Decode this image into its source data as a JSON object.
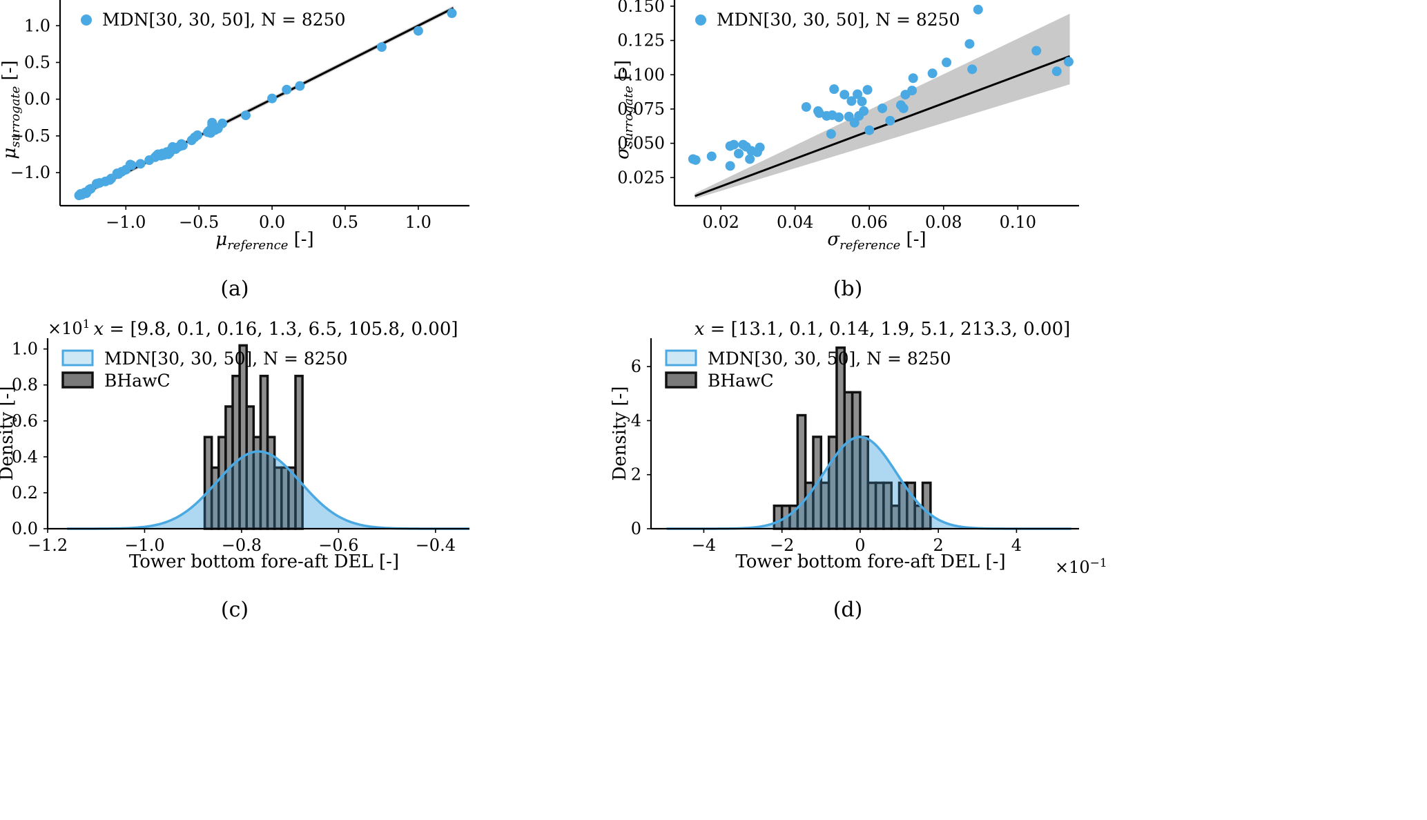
{
  "colors": {
    "mdn": "#4aa9e2",
    "mdn_fill": "#cfe8f6",
    "hist": "#7a7a7a",
    "hist_edge": "#111111",
    "overlap": "#4f6b80",
    "band": "#c9c9c9",
    "line": "#000000",
    "axis": "#000000"
  },
  "chart_data": [
    {
      "id": "a",
      "type": "scatter",
      "caption": "(a)",
      "xlabel_sym": "μ",
      "xlabel_sub": "reference",
      "xlabel_unit": "[-]",
      "ylabel_sym": "μ",
      "ylabel_sub": "surrogate",
      "ylabel_unit": "[-]",
      "xlim": [
        -1.45,
        1.35
      ],
      "ylim": [
        -1.45,
        1.35
      ],
      "xticks": [
        -1.0,
        -0.5,
        0.0,
        0.5,
        1.0
      ],
      "xtick_labels": [
        "−1.0",
        "−0.5",
        "0.0",
        "0.5",
        "1.0"
      ],
      "yticks": [
        -1.0,
        -0.5,
        0.0,
        0.5,
        1.0
      ],
      "ytick_labels": [
        "−1.0",
        "−0.5",
        "0.0",
        "0.5",
        "1.0"
      ],
      "legend": "MDN[30, 30, 50], N = 8250",
      "legend_loc": "top-left",
      "band_halfwidth": 0.03,
      "line": [
        [
          -1.32,
          -1.32
        ],
        [
          1.24,
          1.24
        ]
      ],
      "points": [
        [
          -1.32,
          -1.31
        ],
        [
          -1.31,
          -1.29
        ],
        [
          -1.3,
          -1.3
        ],
        [
          -1.28,
          -1.27
        ],
        [
          -1.27,
          -1.28
        ],
        [
          -1.25,
          -1.23
        ],
        [
          -1.24,
          -1.22
        ],
        [
          -1.2,
          -1.15
        ],
        [
          -1.18,
          -1.14
        ],
        [
          -1.14,
          -1.12
        ],
        [
          -1.11,
          -1.1
        ],
        [
          -1.1,
          -1.08
        ],
        [
          -1.06,
          -1.01
        ],
        [
          -1.05,
          -1.02
        ],
        [
          -1.03,
          -0.99
        ],
        [
          -1.0,
          -0.96
        ],
        [
          -0.97,
          -0.89
        ],
        [
          -0.96,
          -0.9
        ],
        [
          -0.9,
          -0.88
        ],
        [
          -0.84,
          -0.83
        ],
        [
          -0.8,
          -0.79
        ],
        [
          -0.79,
          -0.77
        ],
        [
          -0.78,
          -0.75
        ],
        [
          -0.76,
          -0.77
        ],
        [
          -0.75,
          -0.74
        ],
        [
          -0.74,
          -0.76
        ],
        [
          -0.72,
          -0.72
        ],
        [
          -0.71,
          -0.75
        ],
        [
          -0.7,
          -0.73
        ],
        [
          -0.69,
          -0.69
        ],
        [
          -0.68,
          -0.65
        ],
        [
          -0.66,
          -0.68
        ],
        [
          -0.65,
          -0.66
        ],
        [
          -0.63,
          -0.64
        ],
        [
          -0.62,
          -0.61
        ],
        [
          -0.61,
          -0.63
        ],
        [
          -0.55,
          -0.56
        ],
        [
          -0.53,
          -0.52
        ],
        [
          -0.51,
          -0.49
        ],
        [
          -0.44,
          -0.45
        ],
        [
          -0.43,
          -0.43
        ],
        [
          -0.42,
          -0.46
        ],
        [
          -0.41,
          -0.32
        ],
        [
          -0.41,
          -0.35
        ],
        [
          -0.4,
          -0.37
        ],
        [
          -0.39,
          -0.42
        ],
        [
          -0.38,
          -0.39
        ],
        [
          -0.37,
          -0.4
        ],
        [
          -0.34,
          -0.33
        ],
        [
          -0.18,
          -0.22
        ],
        [
          0.0,
          0.01
        ],
        [
          0.1,
          0.13
        ],
        [
          0.19,
          0.18
        ],
        [
          0.75,
          0.71
        ],
        [
          1.0,
          0.93
        ],
        [
          1.23,
          1.17
        ]
      ]
    },
    {
      "id": "b",
      "type": "scatter",
      "caption": "(b)",
      "xlabel_sym": "σ",
      "xlabel_sub": "reference",
      "xlabel_unit": "[-]",
      "ylabel_sym": "σ",
      "ylabel_sub": "surrogate",
      "ylabel_unit": "[-]",
      "xlim": [
        0.0075,
        0.1165
      ],
      "ylim": [
        0.0045,
        0.1545
      ],
      "xticks": [
        0.02,
        0.04,
        0.06,
        0.08,
        0.1
      ],
      "xtick_labels": [
        "0.02",
        "0.04",
        "0.06",
        "0.08",
        "0.10"
      ],
      "yticks": [
        0.025,
        0.05,
        0.075,
        0.1,
        0.125,
        0.15
      ],
      "ytick_labels": [
        "0.025",
        "0.050",
        "0.075",
        "0.100",
        "0.125",
        "0.150"
      ],
      "legend": "MDN[30, 30, 50], N = 8250",
      "legend_loc": "top-left",
      "band": [
        [
          0.013,
          0.0135,
          0.0095
        ],
        [
          0.114,
          0.1445,
          0.093
        ]
      ],
      "line": [
        [
          0.013,
          0.0115
        ],
        [
          0.114,
          0.1135
        ]
      ],
      "points": [
        [
          0.0125,
          0.0385
        ],
        [
          0.0132,
          0.0378
        ],
        [
          0.0175,
          0.0405
        ],
        [
          0.0225,
          0.0335
        ],
        [
          0.0225,
          0.048
        ],
        [
          0.0235,
          0.049
        ],
        [
          0.0248,
          0.0425
        ],
        [
          0.026,
          0.049
        ],
        [
          0.0268,
          0.0475
        ],
        [
          0.0278,
          0.0385
        ],
        [
          0.0282,
          0.0445
        ],
        [
          0.0298,
          0.0435
        ],
        [
          0.0305,
          0.047
        ],
        [
          0.043,
          0.0765
        ],
        [
          0.0462,
          0.0735
        ],
        [
          0.0465,
          0.072
        ],
        [
          0.0485,
          0.07
        ],
        [
          0.0497,
          0.0568
        ],
        [
          0.05,
          0.0705
        ],
        [
          0.0505,
          0.0895
        ],
        [
          0.0518,
          0.069
        ],
        [
          0.0533,
          0.0855
        ],
        [
          0.0545,
          0.0695
        ],
        [
          0.0552,
          0.0808
        ],
        [
          0.056,
          0.065
        ],
        [
          0.0568,
          0.0858
        ],
        [
          0.0572,
          0.07
        ],
        [
          0.058,
          0.0805
        ],
        [
          0.0585,
          0.0735
        ],
        [
          0.0595,
          0.089
        ],
        [
          0.06,
          0.0595
        ],
        [
          0.0635,
          0.0755
        ],
        [
          0.0656,
          0.0665
        ],
        [
          0.0685,
          0.0778
        ],
        [
          0.0692,
          0.0755
        ],
        [
          0.0697,
          0.0855
        ],
        [
          0.0715,
          0.0885
        ],
        [
          0.0718,
          0.0975
        ],
        [
          0.077,
          0.101
        ],
        [
          0.0808,
          0.109
        ],
        [
          0.087,
          0.1225
        ],
        [
          0.0877,
          0.104
        ],
        [
          0.0893,
          0.1475
        ],
        [
          0.105,
          0.1175
        ],
        [
          0.1105,
          0.1025
        ],
        [
          0.1137,
          0.1095
        ]
      ]
    },
    {
      "id": "c",
      "type": "histogram",
      "caption": "(c)",
      "title": "x = [9.8, 0.1, 0.16, 1.3, 6.5, 105.8, 0.00]",
      "xlabel": "Tower bottom fore-aft DEL [-]",
      "ylabel": "Density [-]",
      "y_multiplier": "×10",
      "y_multiplier_exp": "1",
      "x_multiplier": "",
      "x_multiplier_exp": "",
      "xlim": [
        -1.2,
        -0.33
      ],
      "ylim": [
        0,
        1.06
      ],
      "xticks": [
        -1.2,
        -1.0,
        -0.8,
        -0.6,
        -0.4
      ],
      "xtick_labels": [
        "−1.2",
        "−1.0",
        "−0.8",
        "−0.6",
        "−0.4"
      ],
      "yticks": [
        0,
        0.2,
        0.4,
        0.6,
        0.8,
        1.0
      ],
      "ytick_labels": [
        "0.0",
        "0.2",
        "0.4",
        "0.6",
        "0.8",
        "1.0"
      ],
      "legend": [
        "MDN[30, 30, 50], N = 8250",
        "BHawC"
      ],
      "legend_loc": "top-left",
      "kde": {
        "mu": -0.765,
        "sigma": 0.086,
        "peak": 0.43,
        "range": [
          -1.16,
          -0.33
        ]
      },
      "bins": {
        "start": -0.876,
        "width": 0.0144,
        "heights": [
          0.51,
          0.34,
          0.51,
          0.68,
          0.85,
          1.02,
          0.68,
          0.51,
          0.85,
          0.51,
          0.34,
          0.34,
          0.34,
          0.85
        ]
      }
    },
    {
      "id": "d",
      "type": "histogram",
      "caption": "(d)",
      "title": "x = [13.1, 0.1, 0.14, 1.9, 5.1, 213.3, 0.00]",
      "xlabel": "Tower bottom fore-aft DEL [-]",
      "ylabel": "Density [-]",
      "y_multiplier": "",
      "y_multiplier_exp": "",
      "x_multiplier": "×10",
      "x_multiplier_exp": "−1",
      "xlim": [
        -5.35,
        5.6
      ],
      "ylim": [
        0,
        7.05
      ],
      "xticks": [
        -4,
        -2,
        0,
        2,
        4
      ],
      "xtick_labels": [
        "−4",
        "−2",
        "0",
        "2",
        "4"
      ],
      "yticks": [
        0,
        2,
        4,
        6
      ],
      "ytick_labels": [
        "0",
        "2",
        "4",
        "6"
      ],
      "legend": [
        "MDN[30, 30, 50], N = 8250",
        "BHawC"
      ],
      "legend_loc": "top-left",
      "kde": {
        "mu": 0.0,
        "sigma": 0.93,
        "peak": 3.4,
        "range": [
          -4.95,
          5.4
        ]
      },
      "bins": {
        "start": -2.2,
        "width": 0.2,
        "heights": [
          0.85,
          0.85,
          0.85,
          4.2,
          1.7,
          3.4,
          1.7,
          3.4,
          6.7,
          5.05,
          5.05,
          3.4,
          1.7,
          1.7,
          1.7,
          0.85,
          1.7,
          1.7,
          0.85,
          1.7
        ]
      }
    }
  ]
}
